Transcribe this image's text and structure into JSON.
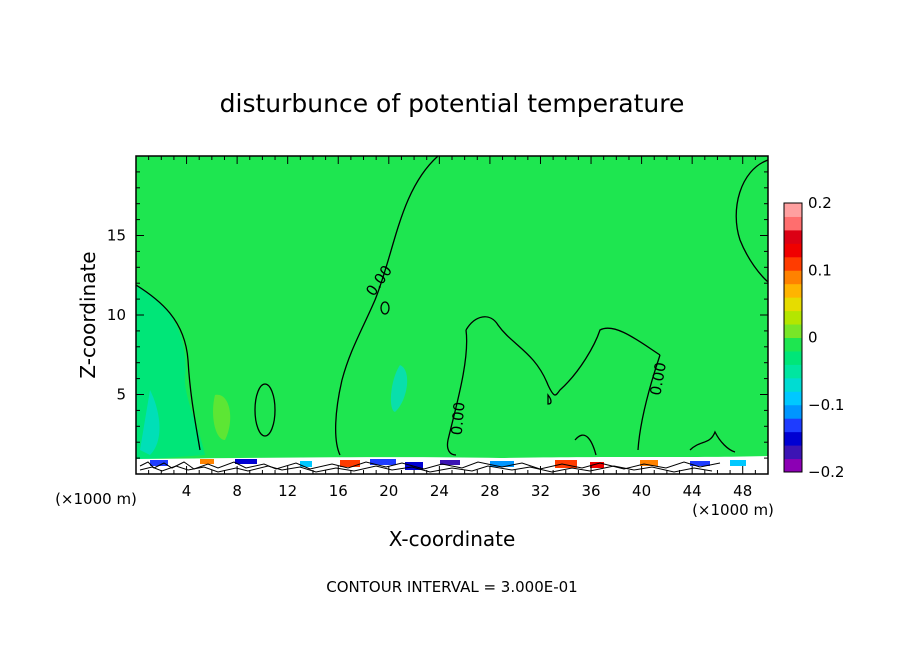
{
  "chart_data": {
    "type": "heatmap",
    "title": "disturbunce of potential temperature",
    "xlabel": "X-coordinate",
    "ylabel": "Z-coordinate",
    "x_unit_left": "(×1000 m)",
    "x_unit_right": "(×1000 m)",
    "xlim": [
      0,
      50
    ],
    "ylim": [
      0,
      20
    ],
    "x_ticks": [
      4,
      8,
      12,
      16,
      20,
      24,
      28,
      32,
      36,
      40,
      44,
      48
    ],
    "x_tick_labels": [
      "4",
      "8",
      "12",
      "16",
      "20",
      "24",
      "28",
      "32",
      "36",
      "40",
      "44",
      "48"
    ],
    "y_ticks": [
      5,
      10,
      15
    ],
    "y_tick_labels": [
      "5",
      "10",
      "15"
    ],
    "contour_label": "0.00",
    "contour_interval_text": "CONTOUR INTERVAL = 3.000E-01",
    "colorbar": {
      "min": -0.2,
      "max": 0.2,
      "tick_values": [
        0.2,
        0.1,
        0,
        -0.1,
        -0.2
      ],
      "tick_labels": [
        "0.2",
        "0.1",
        "0",
        "−0.1",
        "−0.2"
      ],
      "colors": [
        "#8c00b4",
        "#3c14b4",
        "#0000d2",
        "#1e3cff",
        "#0096ff",
        "#00c8ff",
        "#00dcd2",
        "#00e6a0",
        "#00e678",
        "#1ee650",
        "#78e628",
        "#b4e600",
        "#e6dc00",
        "#ffb400",
        "#ff8200",
        "#ff3c00",
        "#f00000",
        "#dc0014",
        "#ff6e6e",
        "#ffa0a0"
      ]
    },
    "background_value": 0.02,
    "cool_region_value": 0.0
  }
}
